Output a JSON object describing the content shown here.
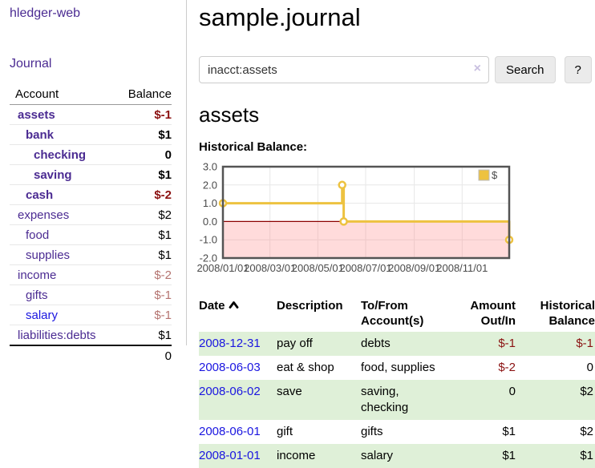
{
  "sidebar": {
    "brand": "hledger-web",
    "nav": {
      "journal": "Journal"
    },
    "table": {
      "col_account": "Account",
      "col_balance": "Balance",
      "accounts": [
        {
          "name": "assets",
          "balance": "$-1",
          "indent": 1,
          "bold": true,
          "neg": "strong"
        },
        {
          "name": "bank",
          "balance": "$1",
          "indent": 2,
          "bold": true
        },
        {
          "name": "checking",
          "balance": "0",
          "indent": 3,
          "bold": true
        },
        {
          "name": "saving",
          "balance": "$1",
          "indent": 3,
          "bold": true
        },
        {
          "name": "cash",
          "balance": "$-2",
          "indent": 2,
          "bold": true,
          "neg": "strong"
        },
        {
          "name": "expenses",
          "balance": "$2",
          "indent": 1
        },
        {
          "name": "food",
          "balance": "$1",
          "indent": 2
        },
        {
          "name": "supplies",
          "balance": "$1",
          "indent": 2
        },
        {
          "name": "income",
          "balance": "$-2",
          "indent": 1,
          "neg": "soft"
        },
        {
          "name": "gifts",
          "balance": "$-1",
          "indent": 2,
          "neg": "soft"
        },
        {
          "name": "salary",
          "balance": "$-1",
          "indent": 2,
          "neg": "soft",
          "blue": true
        },
        {
          "name": "liabilities:debts",
          "balance": "$1",
          "indent": 1
        }
      ],
      "total": "0"
    }
  },
  "header": {
    "title": "sample.journal"
  },
  "search": {
    "value": "inacct:assets",
    "clear_icon": "×",
    "button": "Search",
    "help_button": "?"
  },
  "account_page": {
    "heading": "assets",
    "chart_label": "Historical Balance:"
  },
  "chart_data": {
    "type": "line",
    "step": true,
    "title": "Historical Balance",
    "series": [
      {
        "name": "$",
        "points": [
          [
            "2008-01-01",
            1
          ],
          [
            "2008-06-01",
            2
          ],
          [
            "2008-06-03",
            0
          ],
          [
            "2008-12-31",
            -1
          ]
        ]
      }
    ],
    "x_range": [
      "2008-01-01",
      "2008-12-31"
    ],
    "ylim": [
      -2,
      3
    ],
    "y_ticks": [
      {
        "v": 3,
        "label": "3.0"
      },
      {
        "v": 2,
        "label": "2.0"
      },
      {
        "v": 1,
        "label": "1.0"
      },
      {
        "v": 0,
        "label": "0.0"
      },
      {
        "v": -1,
        "label": "-1.0"
      },
      {
        "v": -2,
        "label": "-2.0"
      }
    ],
    "x_ticks": [
      {
        "date": "2008-01-01",
        "label": "2008/01/01"
      },
      {
        "date": "2008-03-01",
        "label": "2008/03/01"
      },
      {
        "date": "2008-05-01",
        "label": "2008/05/01"
      },
      {
        "date": "2008-07-01",
        "label": "2008/07/01"
      },
      {
        "date": "2008-09-01",
        "label": "2008/09/01"
      },
      {
        "date": "2008-11-01",
        "label": "2008/11/01"
      }
    ],
    "legend": {
      "label": "$",
      "position": "top-right"
    },
    "grid": true,
    "colors": {
      "line": "#edc240",
      "negative_fill": "#ff8888",
      "negative_opacity": "0.3",
      "zero_line": "#8b0000",
      "border": "#545454",
      "grid": "#e7e7e7"
    }
  },
  "register": {
    "columns": {
      "date": "Date",
      "description": "Description",
      "tofrom": "To/From\nAccount(s)",
      "amount": "Amount\nOut/In",
      "historical": "Historical\nBalance"
    },
    "rows": [
      {
        "date": "2008-12-31",
        "description": "pay off",
        "tofrom": "debts",
        "amount": "$-1",
        "historical": "$-1"
      },
      {
        "date": "2008-06-03",
        "description": "eat & shop",
        "tofrom": "food, supplies",
        "amount": "$-2",
        "historical": "0"
      },
      {
        "date": "2008-06-02",
        "description": "save",
        "tofrom": "saving,\nchecking",
        "amount": "0",
        "historical": "$2"
      },
      {
        "date": "2008-06-01",
        "description": "gift",
        "tofrom": "gifts",
        "amount": "$1",
        "historical": "$2"
      },
      {
        "date": "2008-01-01",
        "description": "income",
        "tofrom": "salary",
        "amount": "$1",
        "historical": "$1"
      }
    ]
  }
}
